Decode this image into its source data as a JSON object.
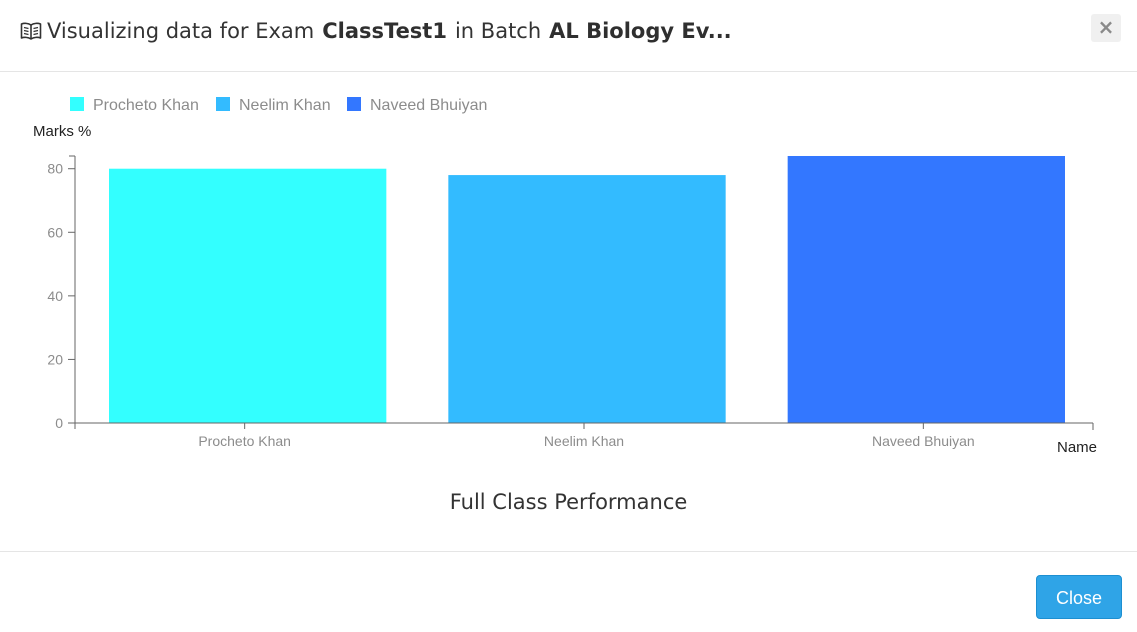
{
  "header": {
    "title_prefix": "Visualizing data for Exam",
    "exam_name": "ClassTest1",
    "title_middle": "in Batch",
    "batch_name": "AL Biology Ev...",
    "close_glyph": "×"
  },
  "footer": {
    "close_label": "Close"
  },
  "chart_data": {
    "type": "bar",
    "title": "Full Class Performance",
    "xlabel": "Name",
    "ylabel": "Marks %",
    "categories": [
      "Procheto Khan",
      "Neelim Khan",
      "Naveed Bhuiyan"
    ],
    "series": [
      {
        "name": "Procheto Khan",
        "values": [
          80,
          null,
          null
        ],
        "color": "#33ffff"
      },
      {
        "name": "Neelim Khan",
        "values": [
          null,
          78,
          null
        ],
        "color": "#33bbff"
      },
      {
        "name": "Naveed Bhuiyan",
        "values": [
          null,
          null,
          84
        ],
        "color": "#3377ff"
      }
    ],
    "yticks": [
      0,
      20,
      40,
      60,
      80
    ],
    "ylim": [
      0,
      84
    ],
    "grid": false,
    "legend": "top-left"
  }
}
